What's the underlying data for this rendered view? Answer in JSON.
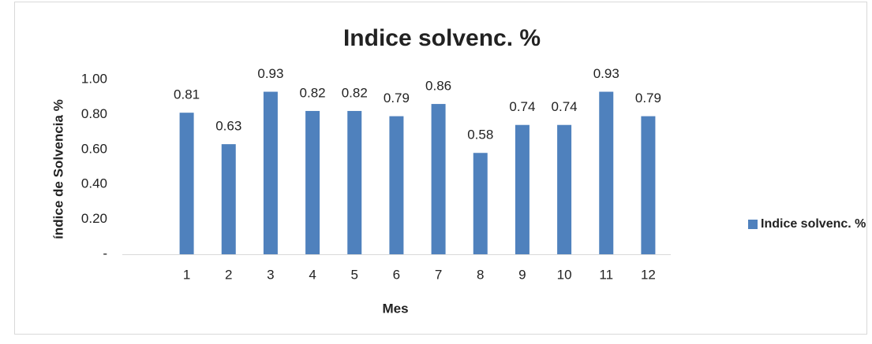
{
  "chart_data": {
    "type": "bar",
    "title": "Indice solvenc. %",
    "x_label": "Mes",
    "y_label": "índice de Solvencia %",
    "categories": [
      "1",
      "2",
      "3",
      "4",
      "5",
      "6",
      "7",
      "8",
      "9",
      "10",
      "11",
      "12"
    ],
    "series": [
      {
        "name": "Indice solvenc. %",
        "color": "#4f81bd",
        "values": [
          0.81,
          0.63,
          0.93,
          0.82,
          0.82,
          0.79,
          0.86,
          0.58,
          0.74,
          0.74,
          0.93,
          0.79
        ]
      }
    ],
    "ylim": [
      0,
      1
    ],
    "yticks": [
      {
        "value": 0,
        "label": "-"
      },
      {
        "value": 0.2,
        "label": "0.20"
      },
      {
        "value": 0.4,
        "label": "0.40"
      },
      {
        "value": 0.6,
        "label": "0.60"
      },
      {
        "value": 0.8,
        "label": "0.80"
      },
      {
        "value": 1,
        "label": "1.00"
      }
    ],
    "grid": false,
    "legend": "right"
  }
}
